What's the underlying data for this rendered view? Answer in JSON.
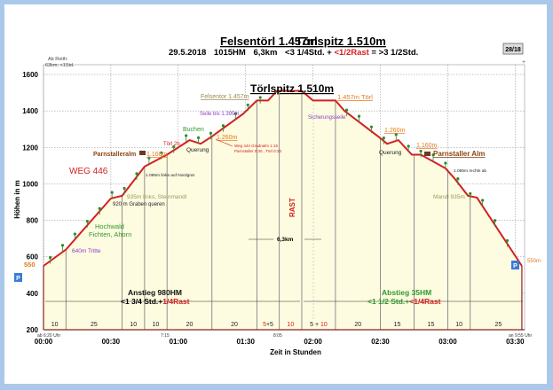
{
  "header": {
    "title_left": "Felsentörl 1.457m",
    "title_right": "Törlspitz 1.510m",
    "sub_date": "29.5.2018",
    "sub_hm": "1015HM",
    "sub_km": "6,3km",
    "sub_time": "<3 1/4Std. +",
    "sub_rast": "<1/2Rast",
    "sub_total": "= >3 1/2Std.",
    "badge": "28/18",
    "plus": "+"
  },
  "info_box": {
    "line1": "Ab Reith:",
    "line2": "63km; <1Std."
  },
  "colors": {
    "profile": "#d42020",
    "fill": "#fdfbe0",
    "tree": "#2e8b2e",
    "orange": "#e87a1a",
    "purple": "#8a3fc0",
    "green": "#2e9a2e",
    "red": "#d42020",
    "brown": "#8b4513",
    "olive": "#9a9a60",
    "p_marker": "#3a7bd5"
  },
  "annotations": {
    "summit": "Törlspitz 1.510m",
    "felsentor": "Felsentor 1.457m",
    "toerl": "1.457m Törl",
    "seile": "Seile bis 1.395m",
    "sicherung": "Sicherungsseile",
    "buchen": "Buchen",
    "h1260_up": "1.260m",
    "h1260_down": "1.260m",
    "toerl2h": "Törl 2h",
    "weg444_1": "Weg 444 Gradnalm 1:15",
    "weg444_2": "Parnstaller 0:30 , Törl 0:30",
    "querung_up": "Querung",
    "querung_down": "Querung",
    "parnstalleralm": "Parnstalleralm",
    "h1160_up": "1.160m",
    "h1160_down": "1.160m",
    "parnstaller_alm": "Parnstaller Alm",
    "weg446": "WEG 446",
    "nordgrat": "1.095m links auf Nordgrat",
    "rechts_ab": "1.085m rechts ab",
    "steinmandl": "935m links, Steinmandl",
    "graben": "920 m Graben queren",
    "mandl": "Mandl 935m",
    "hochwald": "Hochwald",
    "fichten": "Fichten, Ahorn",
    "tritte": "640m Tritte",
    "start_elev": "550",
    "end_elev": "550m",
    "rast": "RAST",
    "distance": "6,3km",
    "anstieg": "Anstieg 980HM",
    "anstieg_time": "<1 3/4 Std.+",
    "anstieg_rast": "1/4Rast",
    "abstieg": "Abstieg 35HM",
    "abstieg_time": "<1 1/2 Std.+",
    "abstieg_rast": "<1/4Rast",
    "parking_left": "P",
    "parking_right": "P",
    "time_start": "ab 6:20 Uhr",
    "time_715": "7:15",
    "time_805": "8:05",
    "time_end": "an 9:55 Uhr"
  },
  "chart_data": {
    "type": "area",
    "title": "Törlspitz 1.510m",
    "xlabel": "Zeit in Stunden",
    "ylabel": "Höhen in m",
    "xlim": [
      0,
      215
    ],
    "ylim": [
      200,
      1600
    ],
    "grid": true,
    "yticks": [
      200,
      400,
      600,
      800,
      1000,
      1200,
      1400,
      1600
    ],
    "xticks": [
      {
        "v": 0,
        "label": "00:00"
      },
      {
        "v": 30,
        "label": "00:30"
      },
      {
        "v": 60,
        "label": "01:00"
      },
      {
        "v": 90,
        "label": "01:30"
      },
      {
        "v": 120,
        "label": "02:00"
      },
      {
        "v": 150,
        "label": "02:30"
      },
      {
        "v": 180,
        "label": "03:00"
      },
      {
        "v": 210,
        "label": "03:30"
      }
    ],
    "x_minutes": [
      0,
      10,
      30,
      35,
      45,
      55,
      65,
      70,
      75,
      89,
      95,
      100,
      104,
      115,
      120,
      130,
      134,
      149,
      153,
      158,
      164,
      168,
      179,
      183,
      189,
      193,
      213
    ],
    "elevation_m": [
      550,
      640,
      920,
      935,
      1095,
      1160,
      1240,
      1220,
      1260,
      1385,
      1457,
      1457,
      1510,
      1510,
      1457,
      1457,
      1400,
      1260,
      1220,
      1240,
      1160,
      1160,
      1085,
      1030,
      935,
      925,
      550
    ],
    "segments": [
      {
        "end": 10,
        "parts": [
          {
            "t": "10",
            "c": "#222"
          }
        ]
      },
      {
        "end": 35,
        "parts": [
          {
            "t": "25",
            "c": "#222"
          }
        ]
      },
      {
        "end": 45,
        "parts": [
          {
            "t": "10",
            "c": "#222"
          }
        ]
      },
      {
        "end": 55,
        "parts": [
          {
            "t": "10",
            "c": "#222"
          }
        ]
      },
      {
        "end": 75,
        "parts": [
          {
            "t": "20",
            "c": "#222"
          }
        ]
      },
      {
        "end": 95,
        "parts": [
          {
            "t": "20",
            "c": "#222"
          }
        ]
      },
      {
        "end": 105,
        "parts": [
          {
            "t": "5",
            "c": "#d42020"
          },
          {
            "t": "+5",
            "c": "#222"
          }
        ]
      },
      {
        "end": 115,
        "parts": [
          {
            "t": "10",
            "c": "#d42020"
          }
        ]
      },
      {
        "end": 130,
        "parts": [
          {
            "t": "5 + ",
            "c": "#222"
          },
          {
            "t": "10",
            "c": "#d42020"
          }
        ]
      },
      {
        "end": 150,
        "parts": [
          {
            "t": "20",
            "c": "#222"
          }
        ]
      },
      {
        "end": 165,
        "parts": [
          {
            "t": "15",
            "c": "#222"
          }
        ]
      },
      {
        "end": 180,
        "parts": [
          {
            "t": "15",
            "c": "#222"
          }
        ]
      },
      {
        "end": 190,
        "parts": [
          {
            "t": "10",
            "c": "#222"
          }
        ]
      },
      {
        "end": 215,
        "parts": [
          {
            "t": "25",
            "c": "#222"
          }
        ]
      }
    ]
  }
}
